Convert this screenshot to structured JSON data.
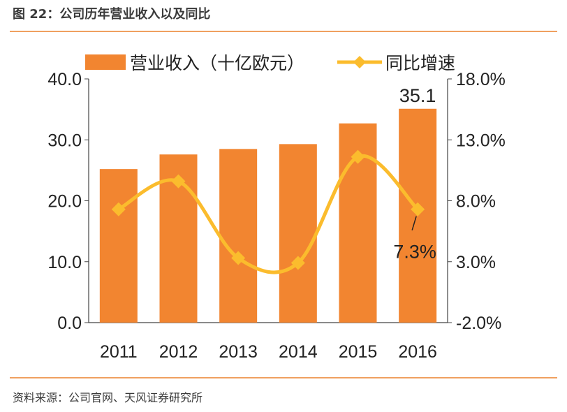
{
  "figure_title": "图 22：公司历年营业收入以及同比",
  "source": "资料来源：公司官网、天风证券研究所",
  "chart_data": {
    "type": "bar+line",
    "categories": [
      "2011",
      "2012",
      "2013",
      "2014",
      "2015",
      "2016"
    ],
    "series": [
      {
        "name": "营业收入（十亿欧元）",
        "type": "bar",
        "axis": "left",
        "color": "#f28530",
        "values": [
          25.2,
          27.6,
          28.5,
          29.3,
          32.7,
          35.1
        ]
      },
      {
        "name": "同比增速",
        "type": "line",
        "axis": "right",
        "color": "#fbbc2d",
        "smooth": true,
        "marker": "diamond",
        "values": [
          7.3,
          9.6,
          3.3,
          2.9,
          11.6,
          7.3
        ]
      }
    ],
    "left_axis": {
      "ylim": [
        0,
        40
      ],
      "ticks": [
        "0.0",
        "10.0",
        "20.0",
        "30.0",
        "40.0"
      ]
    },
    "right_axis": {
      "ylim": [
        -2,
        18
      ],
      "ticks": [
        "-2.0%",
        "3.0%",
        "8.0%",
        "13.0%",
        "18.0%"
      ]
    },
    "data_labels": {
      "bar_2016": "35.1",
      "line_2016": "7.3%"
    },
    "legend_position": "top",
    "grid": false
  }
}
